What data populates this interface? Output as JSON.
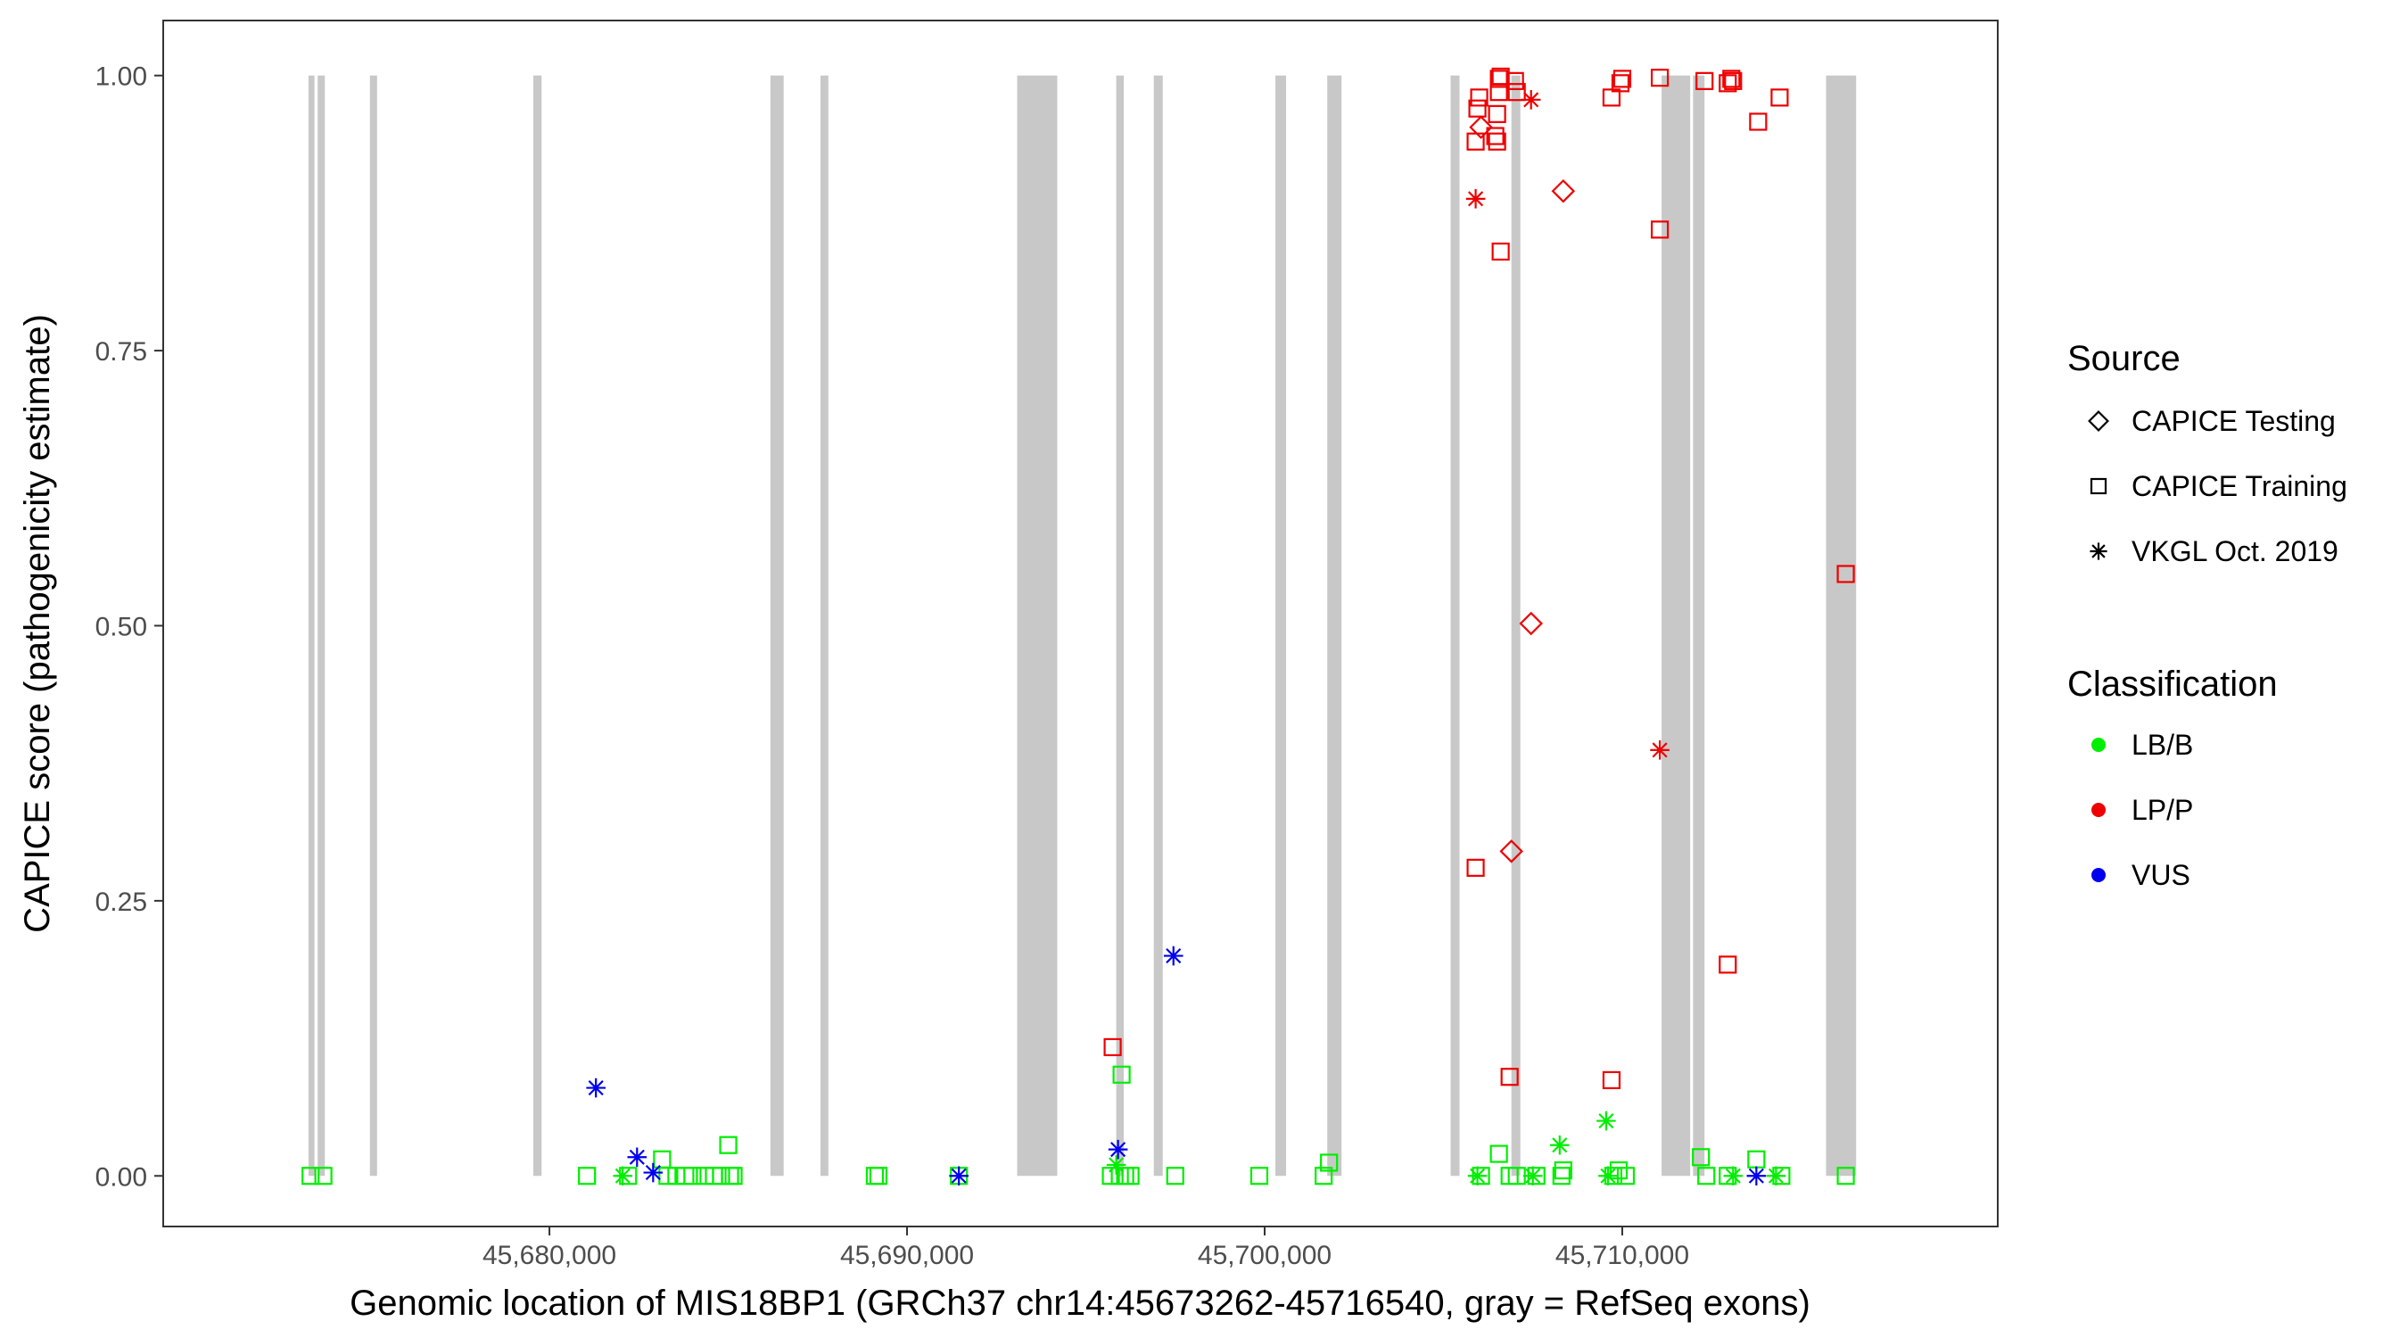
{
  "chart_data": {
    "type": "scatter",
    "title": "",
    "xlabel": "Genomic location of MIS18BP1 (GRCh37 chr14:45673262-45716540, gray = RefSeq exons)",
    "ylabel": "CAPICE score (pathogenicity estimate)",
    "xlim": [
      45669200,
      45720500
    ],
    "ylim": [
      -0.046,
      1.05
    ],
    "x_ticks": [
      45680000,
      45690000,
      45700000,
      45710000
    ],
    "x_tick_labels": [
      "45,680,000",
      "45,690,000",
      "45,700,000",
      "45,710,000"
    ],
    "y_ticks": [
      0,
      0.25,
      0.5,
      0.75,
      1
    ],
    "y_tick_labels": [
      "0.00",
      "0.25",
      "0.50",
      "0.75",
      "1.00"
    ],
    "grid": false,
    "exon_color": "#c8c8c8",
    "exons": [
      [
        45673262,
        45673430
      ],
      [
        45673520,
        45673720
      ],
      [
        45674980,
        45675180
      ],
      [
        45679550,
        45679780
      ],
      [
        45686180,
        45686550
      ],
      [
        45687580,
        45687800
      ],
      [
        45693080,
        45694200
      ],
      [
        45695850,
        45696060
      ],
      [
        45696900,
        45697150
      ],
      [
        45700300,
        45700600
      ],
      [
        45701750,
        45702150
      ],
      [
        45705200,
        45705450
      ],
      [
        45706900,
        45707150
      ],
      [
        45711100,
        45711900
      ],
      [
        45711980,
        45712300
      ],
      [
        45715700,
        45716540
      ]
    ],
    "legend": {
      "position": "right",
      "source_title": "Source",
      "source_entries": [
        {
          "label": "CAPICE Testing",
          "shape": "diamond"
        },
        {
          "label": "CAPICE Training",
          "shape": "square"
        },
        {
          "label": "VKGL Oct. 2019",
          "shape": "asterisk"
        }
      ],
      "class_title": "Classification",
      "class_entries": [
        {
          "label": "LB/B",
          "color": "#00ee00"
        },
        {
          "label": "LP/P",
          "color": "#ee0000"
        },
        {
          "label": "VUS",
          "color": "#0000ee"
        }
      ]
    },
    "series": [
      {
        "name": "LB/B",
        "color": "#00ee00",
        "points": [
          {
            "x": 45673320,
            "y": 0,
            "shape": "square"
          },
          {
            "x": 45673680,
            "y": 0,
            "shape": "square"
          },
          {
            "x": 45681050,
            "y": 0,
            "shape": "square"
          },
          {
            "x": 45682050,
            "y": 0,
            "shape": "asterisk"
          },
          {
            "x": 45682200,
            "y": 0,
            "shape": "square"
          },
          {
            "x": 45683150,
            "y": 0.015,
            "shape": "square"
          },
          {
            "x": 45683300,
            "y": 0,
            "shape": "square"
          },
          {
            "x": 45683550,
            "y": 0,
            "shape": "square"
          },
          {
            "x": 45683800,
            "y": 0,
            "shape": "square"
          },
          {
            "x": 45684000,
            "y": 0,
            "shape": "square"
          },
          {
            "x": 45684350,
            "y": 0,
            "shape": "square"
          },
          {
            "x": 45684600,
            "y": 0,
            "shape": "square"
          },
          {
            "x": 45684800,
            "y": 0,
            "shape": "square"
          },
          {
            "x": 45685050,
            "y": 0,
            "shape": "square"
          },
          {
            "x": 45685000,
            "y": 0.028,
            "shape": "square"
          },
          {
            "x": 45685150,
            "y": 0,
            "shape": "square"
          },
          {
            "x": 45689100,
            "y": 0,
            "shape": "square"
          },
          {
            "x": 45689200,
            "y": 0,
            "shape": "square"
          },
          {
            "x": 45691450,
            "y": 0,
            "shape": "square"
          },
          {
            "x": 45695700,
            "y": 0,
            "shape": "square"
          },
          {
            "x": 45695850,
            "y": 0.01,
            "shape": "asterisk"
          },
          {
            "x": 45695950,
            "y": 0,
            "shape": "square"
          },
          {
            "x": 45696000,
            "y": 0.092,
            "shape": "square"
          },
          {
            "x": 45696100,
            "y": 0,
            "shape": "square"
          },
          {
            "x": 45696250,
            "y": 0,
            "shape": "square"
          },
          {
            "x": 45697500,
            "y": 0,
            "shape": "square"
          },
          {
            "x": 45699850,
            "y": 0,
            "shape": "square"
          },
          {
            "x": 45701650,
            "y": 0,
            "shape": "square"
          },
          {
            "x": 45701800,
            "y": 0.012,
            "shape": "square"
          },
          {
            "x": 45705950,
            "y": 0,
            "shape": "asterisk"
          },
          {
            "x": 45706050,
            "y": 0,
            "shape": "square"
          },
          {
            "x": 45706550,
            "y": 0.02,
            "shape": "square"
          },
          {
            "x": 45706850,
            "y": 0,
            "shape": "square"
          },
          {
            "x": 45707050,
            "y": 0,
            "shape": "square"
          },
          {
            "x": 45707500,
            "y": 0,
            "shape": "asterisk"
          },
          {
            "x": 45707600,
            "y": 0,
            "shape": "square"
          },
          {
            "x": 45708250,
            "y": 0.028,
            "shape": "asterisk"
          },
          {
            "x": 45708300,
            "y": 0,
            "shape": "square"
          },
          {
            "x": 45708350,
            "y": 0.005,
            "shape": "square"
          },
          {
            "x": 45709550,
            "y": 0.05,
            "shape": "asterisk"
          },
          {
            "x": 45709600,
            "y": 0,
            "shape": "asterisk"
          },
          {
            "x": 45709750,
            "y": 0,
            "shape": "square"
          },
          {
            "x": 45709900,
            "y": 0.005,
            "shape": "square"
          },
          {
            "x": 45710100,
            "y": 0,
            "shape": "square"
          },
          {
            "x": 45712200,
            "y": 0.017,
            "shape": "square"
          },
          {
            "x": 45712350,
            "y": 0,
            "shape": "square"
          },
          {
            "x": 45712950,
            "y": 0,
            "shape": "square"
          },
          {
            "x": 45713100,
            "y": 0,
            "shape": "asterisk"
          },
          {
            "x": 45713750,
            "y": 0.015,
            "shape": "square"
          },
          {
            "x": 45714300,
            "y": 0,
            "shape": "asterisk"
          },
          {
            "x": 45714450,
            "y": 0,
            "shape": "square"
          },
          {
            "x": 45716250,
            "y": 0,
            "shape": "square"
          }
        ]
      },
      {
        "name": "LP/P",
        "color": "#ee0000",
        "points": [
          {
            "x": 45695750,
            "y": 0.117,
            "shape": "square"
          },
          {
            "x": 45705900,
            "y": 0.28,
            "shape": "square"
          },
          {
            "x": 45705900,
            "y": 0.888,
            "shape": "asterisk"
          },
          {
            "x": 45705900,
            "y": 0.94,
            "shape": "square"
          },
          {
            "x": 45705950,
            "y": 0.97,
            "shape": "square"
          },
          {
            "x": 45706000,
            "y": 0.98,
            "shape": "square"
          },
          {
            "x": 45706050,
            "y": 0.953,
            "shape": "diamond"
          },
          {
            "x": 45706450,
            "y": 0.945,
            "shape": "square"
          },
          {
            "x": 45706500,
            "y": 0.94,
            "shape": "square"
          },
          {
            "x": 45706500,
            "y": 0.965,
            "shape": "square"
          },
          {
            "x": 45706550,
            "y": 0.985,
            "shape": "square"
          },
          {
            "x": 45706550,
            "y": 0.997,
            "shape": "square"
          },
          {
            "x": 45706600,
            "y": 0.999,
            "shape": "square"
          },
          {
            "x": 45706600,
            "y": 0.84,
            "shape": "square"
          },
          {
            "x": 45706850,
            "y": 0.09,
            "shape": "square"
          },
          {
            "x": 45706900,
            "y": 0.295,
            "shape": "diamond"
          },
          {
            "x": 45707000,
            "y": 0.995,
            "shape": "square"
          },
          {
            "x": 45707050,
            "y": 0.985,
            "shape": "square"
          },
          {
            "x": 45707450,
            "y": 0.978,
            "shape": "asterisk"
          },
          {
            "x": 45707450,
            "y": 0.502,
            "shape": "diamond"
          },
          {
            "x": 45708350,
            "y": 0.895,
            "shape": "diamond"
          },
          {
            "x": 45709700,
            "y": 0.98,
            "shape": "square"
          },
          {
            "x": 45709700,
            "y": 0.087,
            "shape": "square"
          },
          {
            "x": 45709950,
            "y": 0.993,
            "shape": "square"
          },
          {
            "x": 45710000,
            "y": 0.997,
            "shape": "square"
          },
          {
            "x": 45711050,
            "y": 0.998,
            "shape": "square"
          },
          {
            "x": 45711050,
            "y": 0.86,
            "shape": "square"
          },
          {
            "x": 45711050,
            "y": 0.387,
            "shape": "asterisk"
          },
          {
            "x": 45712300,
            "y": 0.995,
            "shape": "square"
          },
          {
            "x": 45712950,
            "y": 0.993,
            "shape": "square"
          },
          {
            "x": 45713050,
            "y": 0.997,
            "shape": "square"
          },
          {
            "x": 45713100,
            "y": 0.995,
            "shape": "square"
          },
          {
            "x": 45712950,
            "y": 0.192,
            "shape": "square"
          },
          {
            "x": 45713800,
            "y": 0.958,
            "shape": "square"
          },
          {
            "x": 45714400,
            "y": 0.98,
            "shape": "square"
          },
          {
            "x": 45716250,
            "y": 0.547,
            "shape": "square"
          }
        ]
      },
      {
        "name": "VUS",
        "color": "#0000ee",
        "points": [
          {
            "x": 45681300,
            "y": 0.08,
            "shape": "asterisk"
          },
          {
            "x": 45682450,
            "y": 0.017,
            "shape": "asterisk"
          },
          {
            "x": 45682900,
            "y": 0.003,
            "shape": "asterisk"
          },
          {
            "x": 45691450,
            "y": 0,
            "shape": "asterisk"
          },
          {
            "x": 45695900,
            "y": 0.024,
            "shape": "asterisk"
          },
          {
            "x": 45697450,
            "y": 0.2,
            "shape": "asterisk"
          },
          {
            "x": 45713750,
            "y": 0,
            "shape": "asterisk"
          }
        ]
      }
    ]
  }
}
